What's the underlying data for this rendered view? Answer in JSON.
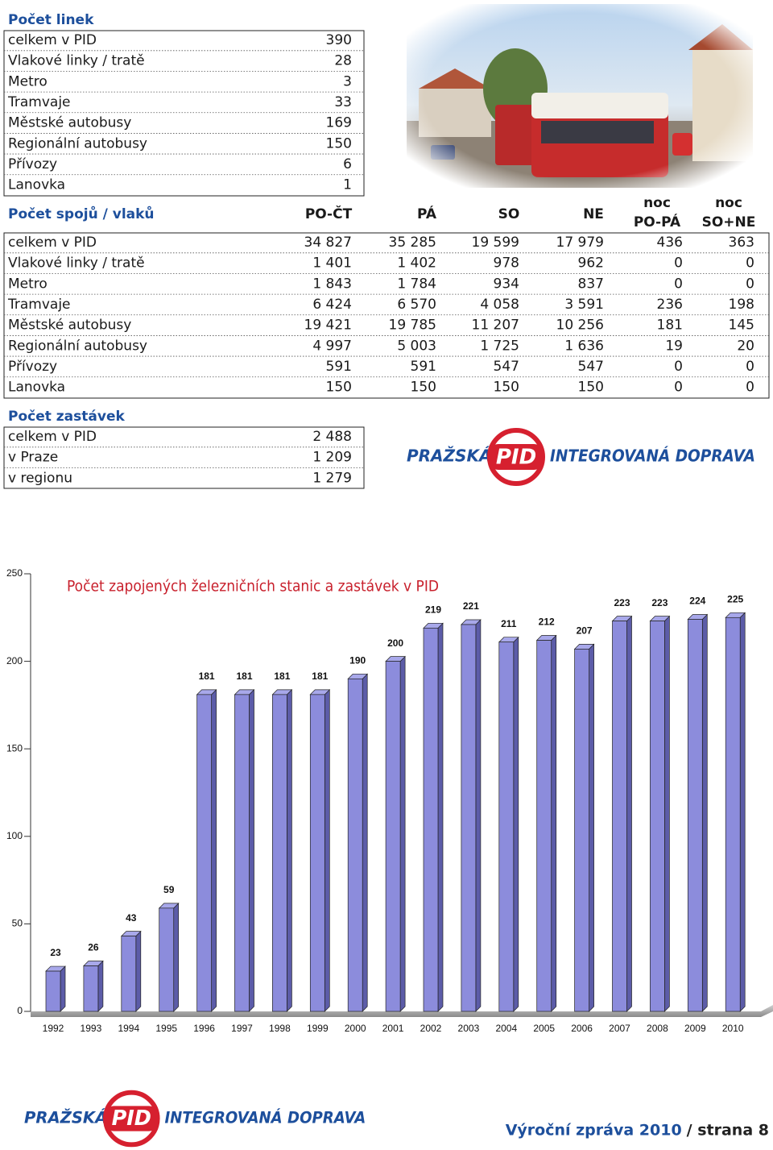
{
  "lines": {
    "title": "Počet linek",
    "rows": [
      [
        "celkem v PID",
        "390"
      ],
      [
        "Vlakové linky / tratě",
        "28"
      ],
      [
        "Metro",
        "3"
      ],
      [
        "Tramvaje",
        "33"
      ],
      [
        "Městské autobusy",
        "169"
      ],
      [
        "Regionální autobusy",
        "150"
      ],
      [
        "Přívozy",
        "6"
      ],
      [
        "Lanovka",
        "1"
      ]
    ]
  },
  "trips": {
    "title": "Počet spojů / vlaků",
    "header": [
      [
        "PO-ČT"
      ],
      [
        "PÁ"
      ],
      [
        "SO"
      ],
      [
        "NE"
      ],
      [
        "noc",
        "PO-PÁ"
      ],
      [
        "noc",
        "SO+NE"
      ]
    ],
    "rows": [
      [
        "celkem v PID",
        "34 827",
        "35 285",
        "19 599",
        "17 979",
        "436",
        "363"
      ],
      [
        "Vlakové linky / tratě",
        "1 401",
        "1 402",
        "978",
        "962",
        "0",
        "0"
      ],
      [
        "Metro",
        "1 843",
        "1 784",
        "934",
        "837",
        "0",
        "0"
      ],
      [
        "Tramvaje",
        "6 424",
        "6 570",
        "4 058",
        "3 591",
        "236",
        "198"
      ],
      [
        "Městské autobusy",
        "19 421",
        "19 785",
        "11 207",
        "10 256",
        "181",
        "145"
      ],
      [
        "Regionální autobusy",
        "4 997",
        "5 003",
        "1 725",
        "1 636",
        "19",
        "20"
      ],
      [
        "Přívozy",
        "591",
        "591",
        "547",
        "547",
        "0",
        "0"
      ],
      [
        "Lanovka",
        "150",
        "150",
        "150",
        "150",
        "0",
        "0"
      ]
    ]
  },
  "stops": {
    "title": "Počet zastávek",
    "rows": [
      [
        "celkem v PID",
        "2 488"
      ],
      [
        "v Praze",
        "1 209"
      ],
      [
        "v regionu",
        "1 279"
      ]
    ]
  },
  "logo": {
    "left": "PRAŽSKÁ",
    "mark": "PID",
    "right": "INTEGROVANÁ DOPRAVA"
  },
  "chart_data": {
    "type": "bar",
    "title": "Počet zapojených železničních stanic a zastávek v PID",
    "categories": [
      "1992",
      "1993",
      "1994",
      "1995",
      "1996",
      "1997",
      "1998",
      "1999",
      "2000",
      "2001",
      "2002",
      "2003",
      "2004",
      "2005",
      "2006",
      "2007",
      "2008",
      "2009",
      "2010"
    ],
    "values": [
      23,
      26,
      43,
      59,
      181,
      181,
      181,
      181,
      190,
      200,
      219,
      221,
      211,
      212,
      207,
      223,
      223,
      224,
      225
    ],
    "color": "#8c8cdc",
    "ylim": [
      0,
      250
    ],
    "yticks": [
      0,
      50,
      100,
      150,
      200,
      250
    ]
  },
  "footer": {
    "report": "Výroční zpráva 2010",
    "page": "/ strana 8"
  }
}
